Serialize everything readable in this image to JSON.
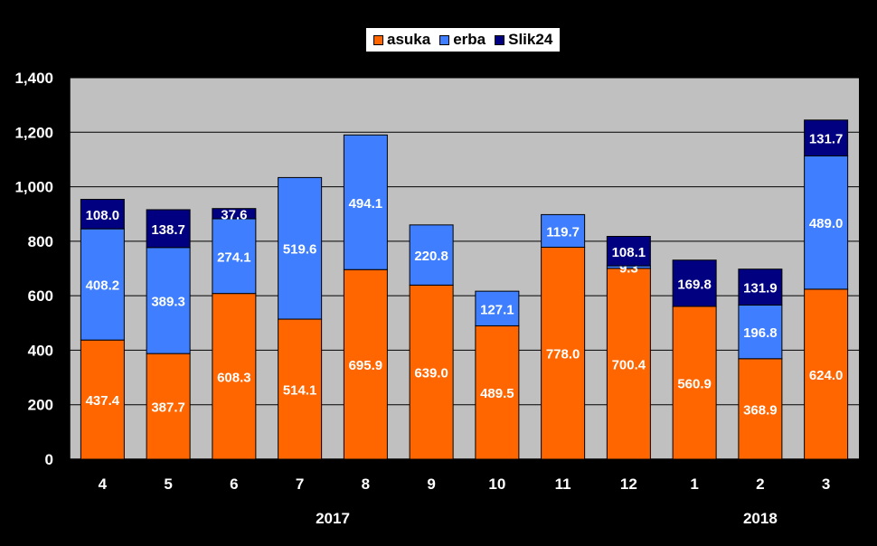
{
  "chart_data": {
    "type": "bar",
    "stacked": true,
    "categories": [
      "4",
      "5",
      "6",
      "7",
      "8",
      "9",
      "10",
      "11",
      "12",
      "1",
      "2",
      "3"
    ],
    "year_labels": [
      {
        "after_category": "7",
        "label": "2017"
      },
      {
        "at_category": "2",
        "label": "2018"
      }
    ],
    "series": [
      {
        "name": "asuka",
        "color": "#ff6600",
        "values": [
          437.4,
          387.7,
          608.3,
          514.1,
          695.9,
          639.0,
          489.5,
          778.0,
          700.4,
          560.9,
          368.9,
          624.0
        ],
        "labels": [
          "437.4",
          "387.7",
          "608.3",
          "514.1",
          "695.9",
          "639.0",
          "489.5",
          "778.0",
          "700.4",
          "560.9",
          "368.9",
          "624.0"
        ]
      },
      {
        "name": "erba",
        "color": "#3f7fff",
        "values": [
          408.2,
          389.3,
          274.1,
          519.6,
          494.1,
          220.8,
          127.1,
          119.7,
          9.3,
          0,
          196.8,
          489.0
        ],
        "labels": [
          "408.2",
          "389.3",
          "274.1",
          "519.6",
          "494.1",
          "220.8",
          "127.1",
          "119.7",
          "9.3",
          "",
          "196.8",
          "489.0"
        ]
      },
      {
        "name": "Slik24",
        "color": "#000080",
        "values": [
          108.0,
          138.7,
          37.6,
          0,
          0,
          0,
          0,
          0,
          108.1,
          169.8,
          131.9,
          131.7
        ],
        "labels": [
          "108.0",
          "138.7",
          "37.6",
          "",
          "",
          "",
          "",
          "",
          "108.1",
          "169.8",
          "131.9",
          "131.7"
        ]
      }
    ],
    "y_ticks": [
      "0",
      "200",
      "400",
      "600",
      "800",
      "1,000",
      "1,200",
      "1,400"
    ],
    "ylim": [
      0,
      1400
    ],
    "grid": true,
    "legend_position": "top-center",
    "colors": {
      "background": "#000000",
      "plot_area": "#c0c0c0",
      "gridline": "#000000"
    }
  }
}
